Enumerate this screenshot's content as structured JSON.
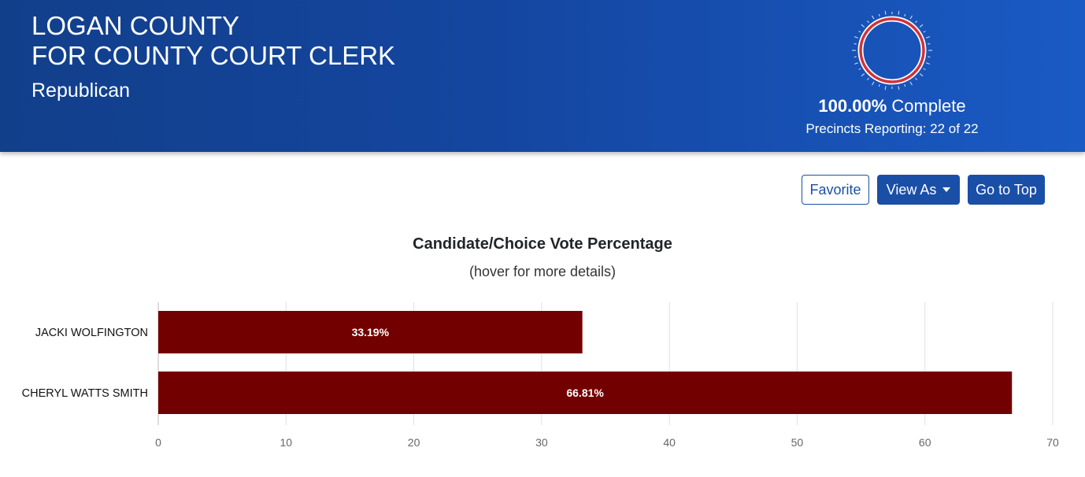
{
  "header": {
    "title_line1": "LOGAN COUNTY",
    "title_line2": "FOR COUNTY COURT CLERK",
    "party": "Republican",
    "percent_complete": "100.00%",
    "complete_label": "Complete",
    "precincts_reporting": "Precincts Reporting: 22 of 22",
    "reporting_fraction": 1.0
  },
  "toolbar": {
    "favorite_label": "Favorite",
    "view_as_label": "View As",
    "go_to_top_label": "Go to Top"
  },
  "chart_title": "Candidate/Choice Vote Percentage",
  "chart_subtitle": "(hover for more details)",
  "colors": {
    "bar": "#730000",
    "header_blue": "#1446a0",
    "ring_red": "#d0313c"
  },
  "chart_data": {
    "type": "bar",
    "orientation": "horizontal",
    "title": "Candidate/Choice Vote Percentage",
    "subtitle": "(hover for more details)",
    "categories": [
      "JACKI WOLFINGTON",
      "CHERYL WATTS SMITH"
    ],
    "values": [
      33.19,
      66.81
    ],
    "data_labels": [
      "33.19%",
      "66.81%"
    ],
    "xlim": [
      0,
      70
    ],
    "x_ticks": [
      0,
      10,
      20,
      30,
      40,
      50,
      60,
      70
    ],
    "grid": true
  }
}
